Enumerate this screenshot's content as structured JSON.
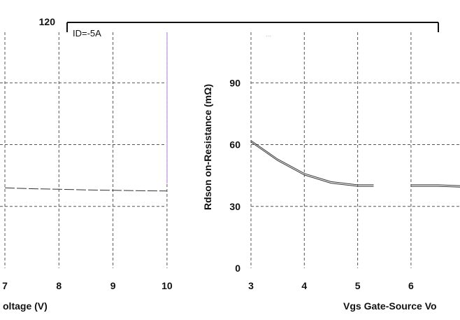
{
  "top_fragment": {
    "tick_label": "120",
    "annotation": "ID=-5A",
    "annotation_right": "..."
  },
  "chart_data": [
    {
      "type": "line",
      "panel": "left",
      "xlabel": "oltage (V)",
      "x_ticks": [
        "7",
        "8",
        "9",
        "10"
      ],
      "xlim": [
        6.9,
        10
      ],
      "ylim": [
        0,
        120
      ],
      "grid": true,
      "series": [
        {
          "x": [
            7,
            7.5,
            8,
            8.5,
            9,
            9.5,
            10
          ],
          "y": [
            39,
            38.6,
            38.3,
            38,
            37.8,
            37.6,
            37.5
          ]
        }
      ]
    },
    {
      "type": "line",
      "panel": "right",
      "ylabel": "Rdson on-Resistance (mΩ)",
      "xlabel": "Vgs Gate-Source Vo",
      "x_ticks": [
        "3",
        "4",
        "5",
        "6"
      ],
      "y_ticks": [
        "0",
        "30",
        "60",
        "90"
      ],
      "xlim": [
        3,
        7
      ],
      "ylim": [
        0,
        120
      ],
      "grid": true,
      "series": [
        {
          "x": [
            3,
            3.5,
            4,
            4.5,
            5,
            5.3
          ],
          "y": [
            62,
            53,
            46,
            42,
            40.5,
            40.5
          ]
        },
        {
          "x": [
            6,
            6.5,
            7
          ],
          "y": [
            40.5,
            40.5,
            40
          ]
        }
      ]
    }
  ]
}
